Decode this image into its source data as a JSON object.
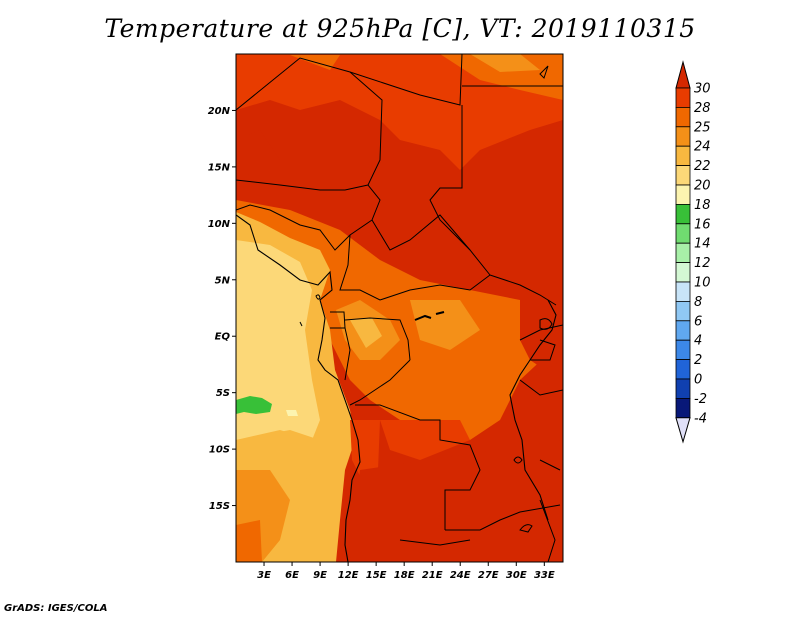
{
  "title": "Temperature at 925hPa [C], VT: 2019110315",
  "footer": "GrADS: IGES/COLA",
  "map": {
    "lat_labels": [
      "20N",
      "15N",
      "10N",
      "5N",
      "EQ",
      "5S",
      "10S",
      "15S"
    ],
    "lon_labels": [
      "3E",
      "6E",
      "9E",
      "12E",
      "15E",
      "18E",
      "21E",
      "24E",
      "27E",
      "30E",
      "33E"
    ],
    "lat_values": [
      20,
      15,
      10,
      5,
      0,
      -5,
      -10,
      -15
    ],
    "lon_values": [
      3,
      6,
      9,
      12,
      15,
      18,
      21,
      24,
      27,
      30,
      33
    ],
    "extent": {
      "lon": [
        0,
        35
      ],
      "lat": [
        -20,
        25
      ]
    }
  },
  "colorbar": {
    "labels": [
      "30",
      "28",
      "25",
      "24",
      "22",
      "20",
      "18",
      "16",
      "14",
      "12",
      "10",
      "8",
      "6",
      "4",
      "2",
      "0",
      "-2",
      "-4"
    ],
    "colors": [
      "#d42800",
      "#e83c00",
      "#f06800",
      "#f49018",
      "#f8b840",
      "#fcd878",
      "#fcf4b0",
      "#38c038",
      "#70dc70",
      "#a8f0a8",
      "#d4f8d4",
      "#c8e4f8",
      "#90c8f4",
      "#60a8f0",
      "#3c88e8",
      "#2064d8",
      "#1040b0",
      "#081878",
      "#e0e0f8"
    ]
  }
}
